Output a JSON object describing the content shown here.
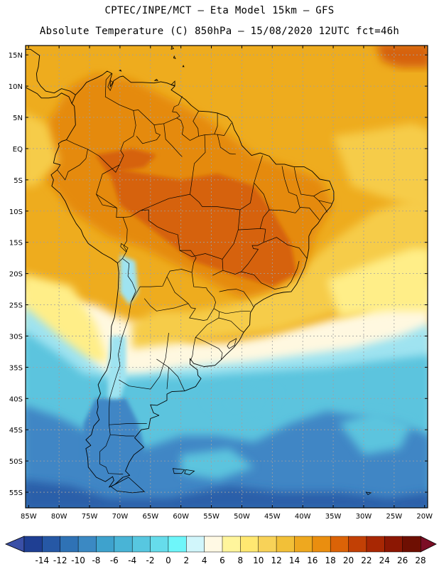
{
  "header": {
    "line1": "CPTEC/INPE/MCT –  Eta Model 15km – GFS",
    "line2": "Absolute Temperature (C) 850hPa – 15/08/2020 12UTC fct=46h"
  },
  "axes": {
    "lat_labels": [
      "15N",
      "10N",
      "5N",
      "EQ",
      "5S",
      "10S",
      "15S",
      "20S",
      "25S",
      "30S",
      "35S",
      "40S",
      "45S",
      "50S",
      "55S"
    ],
    "lat_values": [
      15,
      10,
      5,
      0,
      -5,
      -10,
      -15,
      -20,
      -25,
      -30,
      -35,
      -40,
      -45,
      -50,
      -55
    ],
    "lon_labels": [
      "85W",
      "80W",
      "75W",
      "70W",
      "65W",
      "60W",
      "55W",
      "50W",
      "45W",
      "40W",
      "35W",
      "30W",
      "25W",
      "20W"
    ],
    "lon_values": [
      -85,
      -80,
      -75,
      -70,
      -65,
      -60,
      -55,
      -50,
      -45,
      -40,
      -35,
      -30,
      -25,
      -20
    ],
    "lon_range": [
      -85.5,
      -19.5
    ],
    "lat_range": [
      -57.5,
      16.5
    ]
  },
  "colorbar": {
    "labels": [
      "-14",
      "-12",
      "-10",
      "-8",
      "-6",
      "-4",
      "-2",
      "0",
      "2",
      "4",
      "6",
      "8",
      "10",
      "12",
      "14",
      "16",
      "18",
      "20",
      "22",
      "24",
      "26",
      "28"
    ],
    "colors": [
      "#1f3f93",
      "#2658a5",
      "#2f72b5",
      "#3b89c3",
      "#3ea2cd",
      "#49b4d6",
      "#57c7e0",
      "#66dceb",
      "#6ef6fa",
      "#d1f6fb",
      "#fff9e4",
      "#fff59c",
      "#ffe871",
      "#f8d258",
      "#f2c038",
      "#eea81f",
      "#ea8e0f",
      "#db6307",
      "#c24005",
      "#a82703",
      "#8c1703",
      "#6e0f02"
    ],
    "under_color": "#3a4fa6",
    "over_color": "#7b0d25"
  },
  "field_colors": {
    "ocean_south_deep": "#2a5ea9",
    "ocean_south": "#3f86c5",
    "ocean_cool": "#5bc4de",
    "ocean_mild": "#9fe3f0",
    "cream": "#fff8e0",
    "yellow": "#ffee88",
    "gold": "#f6cc48",
    "orange": "#eeac1e",
    "dark_orange": "#e58a10",
    "red_orange": "#d66207",
    "land_line": "#000000"
  }
}
